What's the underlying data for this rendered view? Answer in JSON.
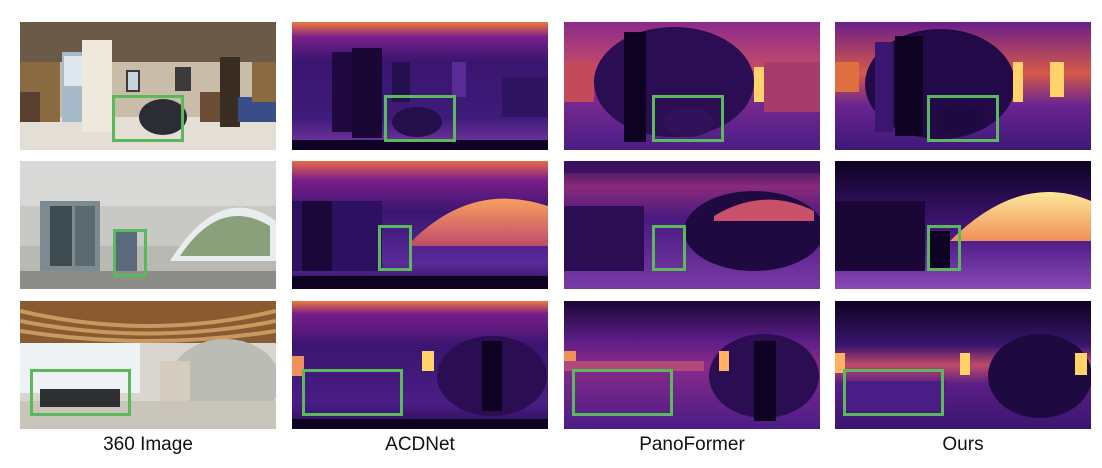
{
  "columns": [
    "360 Image",
    "ACDNet",
    "PanoFormer",
    "Ours"
  ],
  "colors": {
    "highlight_box": "#5cb85c",
    "depth_near": "#0d0221",
    "depth_mid": "#7a1e8a",
    "depth_far": "#fde89a",
    "background": "#ffffff"
  },
  "rows": [
    {
      "scene": "hotel-bedroom"
    },
    {
      "scene": "glass-lobby"
    },
    {
      "scene": "wooden-ceiling-hall"
    }
  ]
}
